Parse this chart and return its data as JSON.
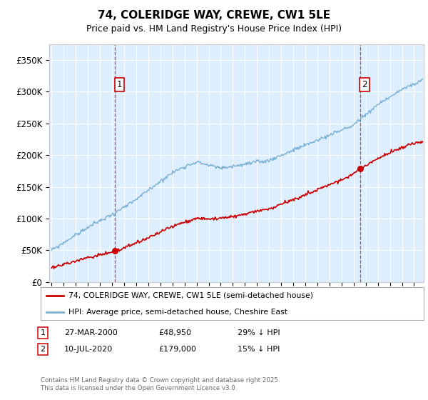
{
  "title": "74, COLERIDGE WAY, CREWE, CW1 5LE",
  "subtitle": "Price paid vs. HM Land Registry's House Price Index (HPI)",
  "legend_entry1": "74, COLERIDGE WAY, CREWE, CW1 5LE (semi-detached house)",
  "legend_entry2": "HPI: Average price, semi-detached house, Cheshire East",
  "annotation1_date": "27-MAR-2000",
  "annotation1_price": "£48,950",
  "annotation1_hpi": "29% ↓ HPI",
  "annotation2_date": "10-JUL-2020",
  "annotation2_price": "£179,000",
  "annotation2_hpi": "15% ↓ HPI",
  "footnote": "Contains HM Land Registry data © Crown copyright and database right 2025.\nThis data is licensed under the Open Government Licence v3.0.",
  "red_color": "#cc0000",
  "blue_color": "#7ab0d4",
  "background_color": "#ddeeff",
  "ylim": [
    0,
    375000
  ],
  "yticks": [
    0,
    50000,
    100000,
    150000,
    200000,
    250000,
    300000,
    350000
  ],
  "ytick_labels": [
    "£0",
    "£50K",
    "£100K",
    "£150K",
    "£200K",
    "£250K",
    "£300K",
    "£350K"
  ],
  "sale1_x": 2000.23,
  "sale1_y": 48950,
  "sale2_x": 2020.53,
  "sale2_y": 179000,
  "xmin": 1994.8,
  "xmax": 2025.8
}
